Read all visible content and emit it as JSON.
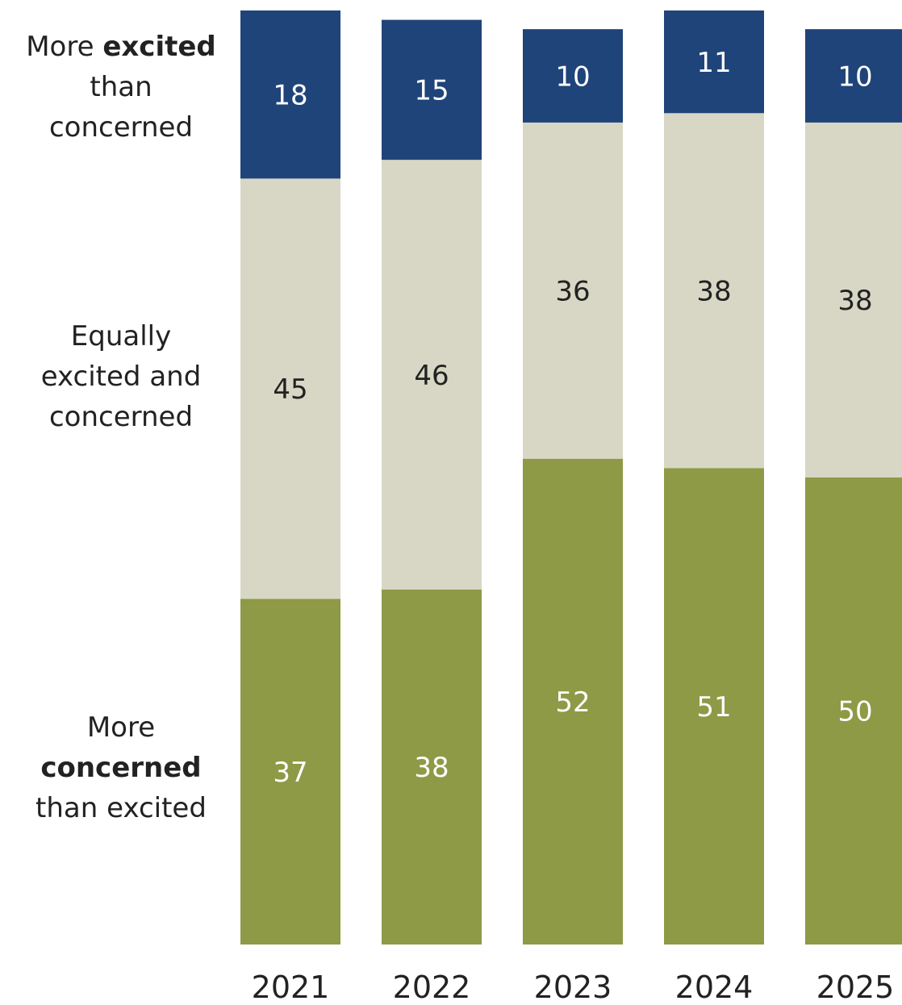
{
  "chart_data": {
    "type": "bar",
    "stacked": true,
    "orientation": "vertical",
    "categories": [
      "2021",
      "2022",
      "2023",
      "2024",
      "2025"
    ],
    "series": [
      {
        "name_parts": [
          "More ",
          "excited",
          " than concerned"
        ],
        "name": "More excited than concerned",
        "values": [
          18,
          15,
          10,
          11,
          10
        ],
        "color": "#1F4479",
        "label_color": "#ffffff"
      },
      {
        "name_parts": [
          "Equally excited and concerned"
        ],
        "name": "Equally excited and concerned",
        "values": [
          45,
          46,
          36,
          38,
          38
        ],
        "color": "#D8D7C5",
        "label_color": "#222222"
      },
      {
        "name_parts": [
          "More ",
          "concerned",
          " than excited"
        ],
        "name": "More concerned than excited",
        "values": [
          37,
          38,
          52,
          51,
          50
        ],
        "color": "#8E9A46",
        "label_color": "#ffffff"
      }
    ],
    "ylim": [
      0,
      100
    ],
    "grid": false,
    "legend": "left"
  }
}
